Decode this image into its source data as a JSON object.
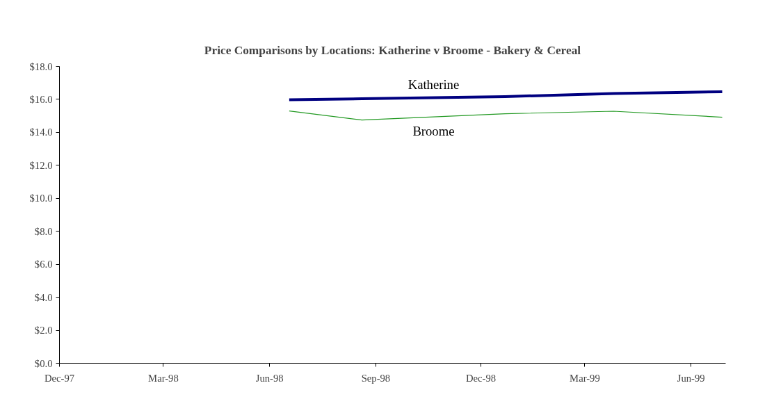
{
  "chart_data": {
    "type": "line",
    "title": "Price Comparisons by Locations: Katherine v Broome - Bakery & Cereal",
    "x": [
      "1998-06-18",
      "1998-08-20",
      "1998-12-22",
      "1999-03-26",
      "1999-06-28"
    ],
    "series": [
      {
        "name": "Katherine",
        "color": "#000080",
        "values": [
          15.98,
          16.04,
          16.17,
          16.36,
          16.46
        ]
      },
      {
        "name": "Broome",
        "color": "#229922",
        "values": [
          15.3,
          14.75,
          15.13,
          15.28,
          14.92
        ]
      }
    ],
    "xlim": [
      "1997-12-01",
      "1999-07-01"
    ],
    "xticks": [
      {
        "value": "1997-12-01",
        "label": "Dec-97"
      },
      {
        "value": "1998-03-01",
        "label": "Mar-98"
      },
      {
        "value": "1998-06-01",
        "label": "Jun-98"
      },
      {
        "value": "1998-09-01",
        "label": "Sep-98"
      },
      {
        "value": "1998-12-01",
        "label": "Dec-98"
      },
      {
        "value": "1999-03-01",
        "label": "Mar-99"
      },
      {
        "value": "1999-06-01",
        "label": "Jun-99"
      }
    ],
    "ylim": [
      0,
      18
    ],
    "yticks": [
      {
        "value": 0,
        "label": "$0.0"
      },
      {
        "value": 2,
        "label": "$2.0"
      },
      {
        "value": 4,
        "label": "$4.0"
      },
      {
        "value": 6,
        "label": "$6.0"
      },
      {
        "value": 8,
        "label": "$8.0"
      },
      {
        "value": 10,
        "label": "$10.0"
      },
      {
        "value": 12,
        "label": "$12.0"
      },
      {
        "value": 14,
        "label": "$14.0"
      },
      {
        "value": 16,
        "label": "$16.0"
      },
      {
        "value": 18,
        "label": "$18.0"
      }
    ],
    "grid": false,
    "marker": "none",
    "line_style": "solid"
  }
}
